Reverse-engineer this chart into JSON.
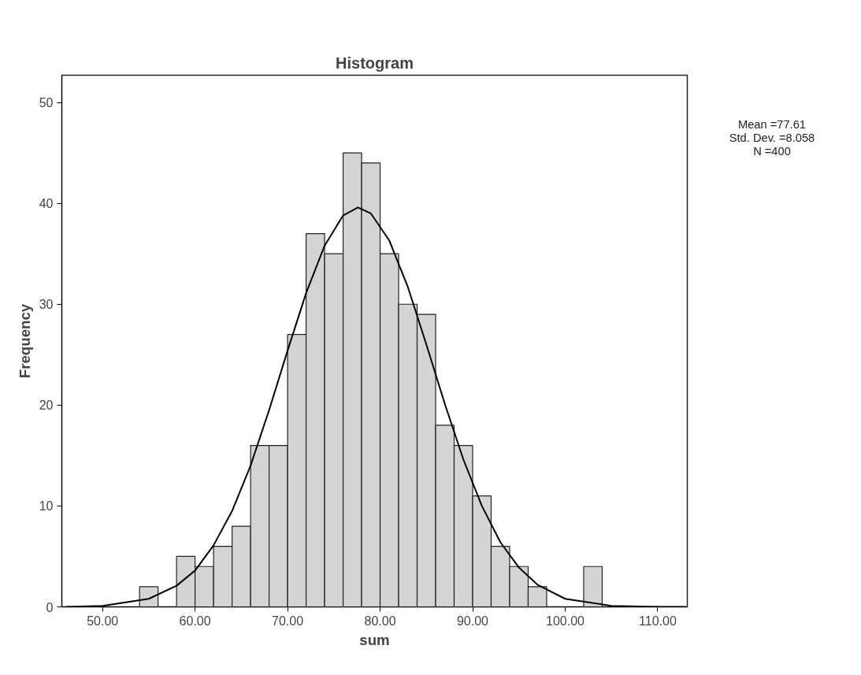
{
  "chart_data": {
    "type": "histogram",
    "title": "Histogram",
    "xlabel": "sum",
    "ylabel": "Frequency",
    "bins": [
      54,
      56,
      58,
      60,
      62,
      64,
      66,
      68,
      70,
      72,
      74,
      76,
      78,
      80,
      82,
      84,
      86,
      88,
      90,
      92,
      94,
      96,
      98,
      100,
      102,
      104
    ],
    "values": [
      2,
      0,
      5,
      4,
      6,
      8,
      16,
      16,
      27,
      37,
      35,
      45,
      44,
      35,
      30,
      29,
      18,
      16,
      11,
      6,
      4,
      2,
      0,
      0,
      4
    ],
    "color": "#d4d4d4",
    "series": [
      {
        "type": "line",
        "color": "#000000",
        "x": [
          46,
          50,
          55,
          58,
          60,
          62,
          64,
          66,
          68,
          70,
          72,
          74,
          76,
          77.6,
          79,
          81,
          83,
          85,
          87,
          89,
          91,
          93,
          95,
          97,
          100,
          105,
          110,
          113
        ],
        "values": [
          0.0,
          0.1,
          0.8,
          2.1,
          3.6,
          6.1,
          9.5,
          14.0,
          19.5,
          25.4,
          31.1,
          35.8,
          38.8,
          39.6,
          39.0,
          36.3,
          31.7,
          26.0,
          20.1,
          14.6,
          10.0,
          6.4,
          3.9,
          2.2,
          0.8,
          0.1,
          0.0,
          0.0
        ]
      }
    ],
    "xlim": [
      45.6,
      113.2
    ],
    "ylim": [
      0,
      52.7
    ],
    "xticks": [
      {
        "value": 50,
        "label": "50.00"
      },
      {
        "value": 60,
        "label": "60.00"
      },
      {
        "value": 70,
        "label": "70.00"
      },
      {
        "value": 80,
        "label": "80.00"
      },
      {
        "value": 90,
        "label": "90.00"
      },
      {
        "value": 100,
        "label": "100.00"
      },
      {
        "value": 110,
        "label": "110.00"
      }
    ],
    "yticks": [
      0,
      10,
      20,
      30,
      40,
      50
    ],
    "grid": false,
    "annotations": [
      "Mean =77.61",
      "Std. Dev. =8.058",
      "N =400"
    ]
  }
}
